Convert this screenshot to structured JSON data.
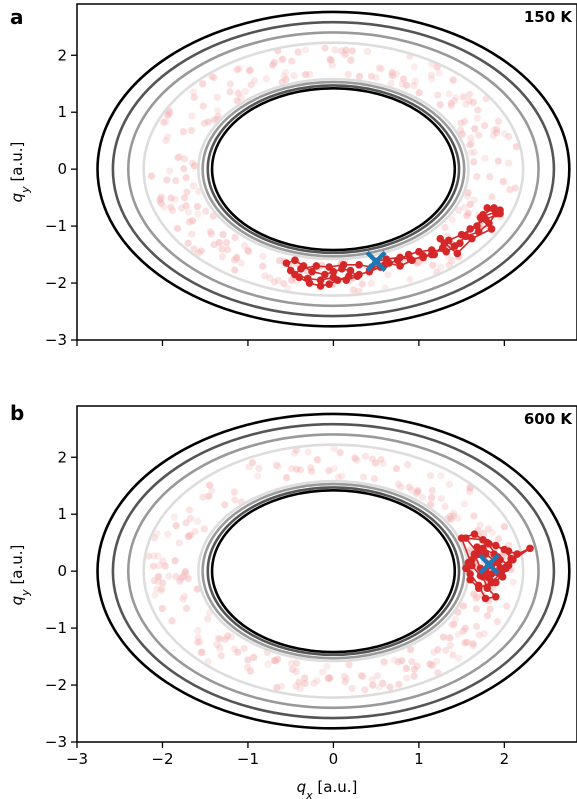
{
  "chart_data": [
    {
      "type": "scatter",
      "panel": "a",
      "annotation": "150 K",
      "xlabel": "",
      "ylabel_var": "q",
      "ylabel_sub": "y",
      "ylabel_unit": " [a.u.]",
      "xlim": [
        -3,
        2.85
      ],
      "ylim": [
        -3,
        2.9
      ],
      "xticks": [
        -3,
        -2,
        -1,
        0,
        1,
        2
      ],
      "xtick_labels_visible": false,
      "yticks": [
        -3,
        -2,
        -1,
        0,
        1,
        2
      ],
      "ytick_labels": [
        "−3",
        "−2",
        "−1",
        "0",
        "1",
        "2"
      ],
      "contours": [
        {
          "rx": 1.42,
          "ry": 1.42,
          "color": "#000000"
        },
        {
          "rx": 1.47,
          "ry": 1.47,
          "color": "#555555"
        },
        {
          "rx": 1.53,
          "ry": 1.53,
          "color": "#999999"
        },
        {
          "rx": 1.58,
          "ry": 1.58,
          "color": "#dddddd"
        },
        {
          "rx": 2.22,
          "ry": 2.22,
          "color": "#dddddd"
        },
        {
          "rx": 2.4,
          "ry": 2.4,
          "color": "#999999"
        },
        {
          "rx": 2.58,
          "ry": 2.58,
          "color": "#555555"
        },
        {
          "rx": 2.76,
          "ry": 2.76,
          "color": "#000000"
        }
      ],
      "cloud_color": "#f4b8b8",
      "trajectory_color": "#d62728",
      "marker_color": "#1f77b4",
      "marker": {
        "x": 0.5,
        "y": -1.62
      },
      "trajectory": [
        [
          0.5,
          -1.62
        ],
        [
          0.62,
          -1.58
        ],
        [
          0.78,
          -1.55
        ],
        [
          0.9,
          -1.58
        ],
        [
          1.05,
          -1.55
        ],
        [
          1.15,
          -1.5
        ],
        [
          1.28,
          -1.38
        ],
        [
          1.25,
          -1.22
        ],
        [
          1.42,
          -1.35
        ],
        [
          1.55,
          -1.18
        ],
        [
          1.7,
          -1.1
        ],
        [
          1.82,
          -0.95
        ],
        [
          1.9,
          -0.78
        ],
        [
          1.8,
          -0.68
        ],
        [
          1.95,
          -0.72
        ],
        [
          1.72,
          -0.85
        ],
        [
          1.85,
          -1.05
        ],
        [
          1.62,
          -1.22
        ],
        [
          1.45,
          -1.48
        ],
        [
          1.3,
          -1.3
        ],
        [
          1.18,
          -1.5
        ],
        [
          1.05,
          -1.52
        ],
        [
          0.92,
          -1.6
        ],
        [
          0.78,
          -1.7
        ],
        [
          0.65,
          -1.65
        ],
        [
          0.55,
          -1.72
        ],
        [
          0.42,
          -1.8
        ],
        [
          0.3,
          -1.85
        ],
        [
          0.18,
          -1.88
        ],
        [
          0.05,
          -1.95
        ],
        [
          -0.05,
          -2.02
        ],
        [
          -0.15,
          -2.05
        ],
        [
          -0.28,
          -2.0
        ],
        [
          -0.4,
          -1.9
        ],
        [
          -0.5,
          -1.78
        ],
        [
          -0.55,
          -1.65
        ],
        [
          -0.45,
          -1.6
        ],
        [
          -0.35,
          -1.7
        ],
        [
          -0.25,
          -1.8
        ],
        [
          -0.1,
          -1.85
        ],
        [
          0.0,
          -1.8
        ],
        [
          0.1,
          -1.75
        ],
        [
          0.2,
          -1.78
        ],
        [
          0.28,
          -1.88
        ],
        [
          0.15,
          -1.95
        ],
        [
          0.0,
          -1.9
        ],
        [
          -0.15,
          -1.95
        ],
        [
          -0.3,
          -1.92
        ],
        [
          -0.45,
          -1.85
        ],
        [
          -0.38,
          -1.75
        ],
        [
          -0.2,
          -1.7
        ],
        [
          -0.05,
          -1.72
        ],
        [
          0.12,
          -1.68
        ],
        [
          0.3,
          -1.68
        ],
        [
          0.45,
          -1.72
        ],
        [
          0.6,
          -1.68
        ],
        [
          0.75,
          -1.6
        ],
        [
          0.88,
          -1.5
        ],
        [
          1.0,
          -1.45
        ],
        [
          1.15,
          -1.42
        ],
        [
          1.32,
          -1.45
        ],
        [
          1.48,
          -1.3
        ],
        [
          1.6,
          -1.05
        ],
        [
          1.78,
          -0.88
        ],
        [
          1.95,
          -0.78
        ],
        [
          1.88,
          -0.68
        ],
        [
          1.75,
          -0.8
        ],
        [
          1.68,
          -1.0
        ],
        [
          1.5,
          -1.15
        ],
        [
          1.35,
          -1.25
        ]
      ]
    },
    {
      "type": "scatter",
      "panel": "b",
      "annotation": "600 K",
      "xlabel_var": "q",
      "xlabel_sub": "x",
      "xlabel_unit": " [a.u.]",
      "ylabel_var": "q",
      "ylabel_sub": "y",
      "ylabel_unit": " [a.u.]",
      "xlim": [
        -3,
        2.85
      ],
      "ylim": [
        -3,
        2.9
      ],
      "xticks": [
        -3,
        -2,
        -1,
        0,
        1,
        2
      ],
      "xtick_labels_visible": true,
      "xtick_labels": [
        "−3",
        "−2",
        "−1",
        "0",
        "1",
        "2"
      ],
      "yticks": [
        -3,
        -2,
        -1,
        0,
        1,
        2
      ],
      "ytick_labels": [
        "−3",
        "−2",
        "−1",
        "0",
        "1",
        "2"
      ],
      "contours": [
        {
          "rx": 1.42,
          "ry": 1.42,
          "color": "#000000"
        },
        {
          "rx": 1.47,
          "ry": 1.47,
          "color": "#555555"
        },
        {
          "rx": 1.53,
          "ry": 1.53,
          "color": "#999999"
        },
        {
          "rx": 1.58,
          "ry": 1.58,
          "color": "#dddddd"
        },
        {
          "rx": 2.22,
          "ry": 2.22,
          "color": "#dddddd"
        },
        {
          "rx": 2.4,
          "ry": 2.4,
          "color": "#999999"
        },
        {
          "rx": 2.58,
          "ry": 2.58,
          "color": "#555555"
        },
        {
          "rx": 2.76,
          "ry": 2.76,
          "color": "#000000"
        }
      ],
      "cloud_color": "#f4b8b8",
      "trajectory_color": "#d62728",
      "marker_color": "#1f77b4",
      "marker": {
        "x": 1.82,
        "y": 0.12
      },
      "trajectory": [
        [
          1.82,
          0.12
        ],
        [
          1.7,
          0.3
        ],
        [
          1.55,
          0.58
        ],
        [
          1.75,
          0.55
        ],
        [
          1.9,
          0.45
        ],
        [
          2.05,
          0.35
        ],
        [
          2.15,
          0.3
        ],
        [
          2.3,
          0.4
        ],
        [
          2.1,
          0.2
        ],
        [
          1.95,
          -0.05
        ],
        [
          1.85,
          -0.2
        ],
        [
          1.7,
          -0.3
        ],
        [
          1.6,
          -0.15
        ],
        [
          1.55,
          0.05
        ],
        [
          1.62,
          0.2
        ],
        [
          1.78,
          0.3
        ],
        [
          1.92,
          0.15
        ],
        [
          2.02,
          0.05
        ],
        [
          1.98,
          -0.1
        ],
        [
          1.85,
          -0.05
        ],
        [
          1.72,
          0.05
        ],
        [
          1.65,
          0.3
        ],
        [
          1.75,
          0.4
        ],
        [
          1.88,
          0.3
        ],
        [
          1.95,
          0.2
        ],
        [
          1.85,
          0.1
        ],
        [
          1.75,
          -0.1
        ],
        [
          1.8,
          -0.3
        ],
        [
          1.9,
          -0.45
        ],
        [
          1.78,
          -0.48
        ],
        [
          1.7,
          -0.25
        ],
        [
          1.6,
          -0.05
        ],
        [
          1.58,
          0.15
        ],
        [
          1.68,
          0.42
        ],
        [
          1.82,
          0.48
        ],
        [
          2.0,
          0.38
        ],
        [
          2.08,
          0.22
        ],
        [
          1.95,
          0.05
        ],
        [
          1.82,
          -0.12
        ],
        [
          1.72,
          -0.08
        ],
        [
          1.62,
          0.1
        ],
        [
          1.5,
          0.58
        ],
        [
          1.65,
          0.65
        ],
        [
          1.8,
          0.5
        ],
        [
          1.92,
          0.25
        ],
        [
          2.05,
          0.1
        ],
        [
          1.9,
          -0.2
        ],
        [
          1.78,
          0.0
        ]
      ]
    }
  ]
}
